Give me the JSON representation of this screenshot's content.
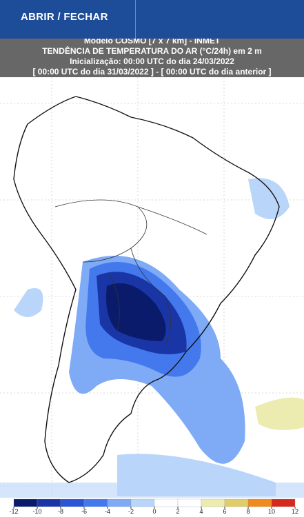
{
  "header": {
    "button": "ABRIR / FECHAR"
  },
  "map": {
    "title_lines": [
      "Modelo COSMO [7 x 7 km] - INMET",
      "TENDÊNCIA DE TEMPERATURA DO AR (°C/24h) em 2 m",
      "Inicialização: 00:00 UTC do dia 24/03/2022",
      "[ 00:00 UTC do dia 31/03/2022 ] - [ 00:00 UTC do dia anterior ]"
    ]
  },
  "colorbar": {
    "ticks": [
      -12,
      -10,
      -8,
      -6,
      -4,
      -2,
      0,
      2,
      4,
      6,
      8,
      10,
      12
    ],
    "colors": [
      "#0b1b6b",
      "#1a36a6",
      "#2a55d6",
      "#4479ee",
      "#7eaaf6",
      "#b9d6fa",
      "#ffffff",
      "#ffffff",
      "#ecebb0",
      "#e0cd6a",
      "#f08a1e",
      "#d42a1e"
    ]
  }
}
